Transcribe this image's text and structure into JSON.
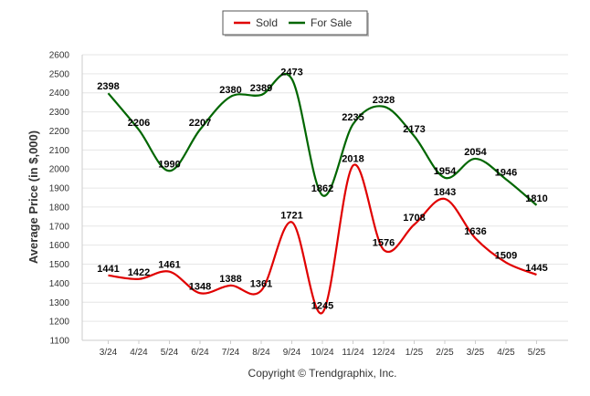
{
  "chart_data": {
    "type": "line",
    "ylabel": "Average Price (in $,000)",
    "credit": "Copyright © Trendgraphix, Inc.",
    "categories": [
      "3/24",
      "4/24",
      "5/24",
      "6/24",
      "7/24",
      "8/24",
      "9/24",
      "10/24",
      "11/24",
      "12/24",
      "1/25",
      "2/25",
      "3/25",
      "4/25",
      "5/25"
    ],
    "ylim": [
      1100,
      2600
    ],
    "yticks": [
      1100,
      1200,
      1300,
      1400,
      1500,
      1600,
      1700,
      1800,
      1900,
      2000,
      2100,
      2200,
      2300,
      2400,
      2500,
      2600
    ],
    "grid": "horizontal",
    "legend": "top-center",
    "series": [
      {
        "name": "Sold",
        "color": "#e00000",
        "values": [
          1441,
          1422,
          1461,
          1348,
          1388,
          1361,
          1721,
          1245,
          2018,
          1576,
          1708,
          1843,
          1636,
          1509,
          1445
        ]
      },
      {
        "name": "For Sale",
        "color": "#006600",
        "values": [
          2398,
          2206,
          1990,
          2207,
          2380,
          2389,
          2473,
          1862,
          2235,
          2328,
          2173,
          1954,
          2054,
          1946,
          1810
        ]
      }
    ]
  }
}
